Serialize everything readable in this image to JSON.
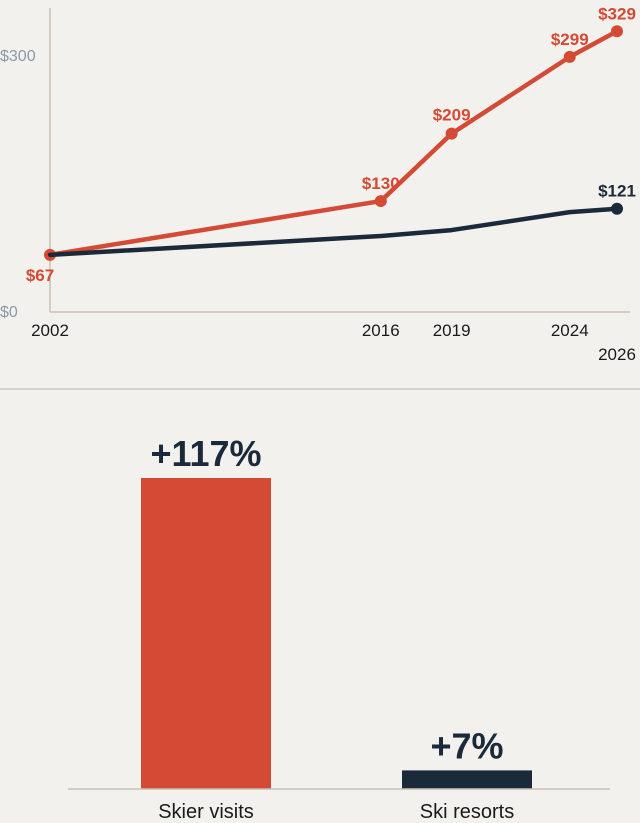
{
  "colors": {
    "background": "#f3f1ed",
    "red": "#d44a35",
    "navy": "#1b2a3a",
    "axis": "#c9bfb2",
    "ytick": "#8a9aa8"
  },
  "chart_data": [
    {
      "type": "line",
      "x": [
        2002,
        2016,
        2019,
        2024,
        2026
      ],
      "xticks": [
        "2002",
        "2016",
        "2019",
        "2024",
        "2026"
      ],
      "yticks": [
        "$0",
        "$300"
      ],
      "ylim": [
        0,
        300
      ],
      "xlim": [
        2002,
        2026
      ],
      "grid": false,
      "series": [
        {
          "color": "#d44a35",
          "values": [
            67,
            130,
            209,
            299,
            329
          ],
          "labels": [
            "$67",
            "$130",
            "$209",
            "$299",
            "$329"
          ],
          "markers": "all"
        },
        {
          "color": "#1b2a3a",
          "values": [
            67,
            89,
            96,
            117,
            121
          ],
          "labels": [
            "",
            "",
            "",
            "",
            "$121"
          ],
          "markers": "last"
        }
      ]
    },
    {
      "type": "bar",
      "categories": [
        "Skier visits",
        "Ski resorts"
      ],
      "values": [
        117,
        7
      ],
      "value_labels": [
        "+117%",
        "+7%"
      ],
      "colors": [
        "#d44a35",
        "#1b2a3a"
      ],
      "ylim": [
        0,
        117
      ]
    }
  ]
}
